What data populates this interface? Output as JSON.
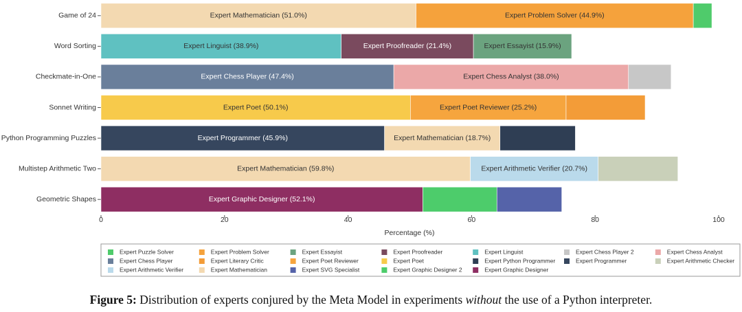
{
  "chart_data": {
    "type": "bar",
    "orientation": "horizontal",
    "stacked": true,
    "x_label": "Percentage (%)",
    "xlim": [
      0,
      100
    ],
    "xticks": [
      0,
      20,
      40,
      60,
      80,
      100
    ],
    "legend": [
      {
        "name": "Expert Puzzle Solver",
        "color": "#4fcb6b"
      },
      {
        "name": "Expert Problem Solver",
        "color": "#f5a23c"
      },
      {
        "name": "Expert Essayist",
        "color": "#6ba37f"
      },
      {
        "name": "Expert Proofreader",
        "color": "#7a4a5e"
      },
      {
        "name": "Expert Linguist",
        "color": "#5fc1c1"
      },
      {
        "name": "Expert Chess Player 2",
        "color": "#c7c7c7"
      },
      {
        "name": "Expert Chess Analyst",
        "color": "#eba8a8"
      },
      {
        "name": "Expert Chess Player",
        "color": "#6a7f9b"
      },
      {
        "name": "Expert Literary Critic",
        "color": "#f39c38"
      },
      {
        "name": "Expert Poet Reviewer",
        "color": "#f6a53e"
      },
      {
        "name": "Expert Poet",
        "color": "#f7ca4b"
      },
      {
        "name": "Expert Python Programmer",
        "color": "#2f3e54"
      },
      {
        "name": "Expert Programmer",
        "color": "#36465e"
      },
      {
        "name": "Expert Arithmetic Checker",
        "color": "#c9d0b9"
      },
      {
        "name": "Expert Arithmetic Verifier",
        "color": "#badaeb"
      },
      {
        "name": "Expert Mathematician",
        "color": "#f3d9b1"
      },
      {
        "name": "Expert SVG Specialist",
        "color": "#5563a9"
      },
      {
        "name": "Expert Graphic Designer 2",
        "color": "#4dcc6b"
      },
      {
        "name": "Expert Graphic Designer",
        "color": "#8e2e62"
      }
    ],
    "bars": [
      {
        "category": "Game of 24",
        "segments": [
          {
            "name": "Expert Mathematician",
            "value": 51.0,
            "value_label": "Expert Mathematician (51.0%)"
          },
          {
            "name": "Expert Problem Solver",
            "value": 44.9,
            "value_label": "Expert Problem Solver (44.9%)"
          },
          {
            "name": "Expert Puzzle Solver",
            "value": 3.0
          }
        ]
      },
      {
        "category": "Word Sorting",
        "segments": [
          {
            "name": "Expert Linguist",
            "value": 38.9,
            "value_label": "Expert Linguist (38.9%)"
          },
          {
            "name": "Expert Proofreader",
            "value": 21.4,
            "value_label": "Expert Proofreader (21.4%)"
          },
          {
            "name": "Expert Essayist",
            "value": 15.9,
            "value_label": "Expert Essayist (15.9%)"
          }
        ]
      },
      {
        "category": "Checkmate-in-One",
        "segments": [
          {
            "name": "Expert Chess Player",
            "value": 47.4,
            "value_label": "Expert Chess Player (47.4%)"
          },
          {
            "name": "Expert Chess Analyst",
            "value": 38.0,
            "value_label": "Expert Chess Analyst (38.0%)"
          },
          {
            "name": "Expert Chess Player 2",
            "value": 6.9
          }
        ]
      },
      {
        "category": "Sonnet Writing",
        "segments": [
          {
            "name": "Expert Poet",
            "value": 50.1,
            "value_label": "Expert Poet (50.1%)"
          },
          {
            "name": "Expert Poet Reviewer",
            "value": 25.2,
            "value_label": "Expert Poet Reviewer (25.2%)"
          },
          {
            "name": "Expert Literary Critic",
            "value": 12.8
          }
        ]
      },
      {
        "category": "Python Programming Puzzles",
        "segments": [
          {
            "name": "Expert Programmer",
            "value": 45.9,
            "value_label": "Expert Programmer (45.9%)"
          },
          {
            "name": "Expert Mathematician",
            "value": 18.7,
            "value_label": "Expert Mathematician (18.7%)"
          },
          {
            "name": "Expert Python Programmer",
            "value": 12.2
          }
        ]
      },
      {
        "category": "Multistep Arithmetic Two",
        "segments": [
          {
            "name": "Expert Mathematician",
            "value": 59.8,
            "value_label": "Expert Mathematician (59.8%)"
          },
          {
            "name": "Expert Arithmetic Verifier",
            "value": 20.7,
            "value_label": "Expert Arithmetic Verifier (20.7%)"
          },
          {
            "name": "Expert Arithmetic Checker",
            "value": 12.9
          }
        ]
      },
      {
        "category": "Geometric Shapes",
        "segments": [
          {
            "name": "Expert Graphic Designer",
            "value": 52.1,
            "value_label": "Expert Graphic Designer (52.1%)"
          },
          {
            "name": "Expert Graphic Designer 2",
            "value": 12.0
          },
          {
            "name": "Expert SVG Specialist",
            "value": 10.5
          }
        ]
      }
    ]
  },
  "caption": {
    "label": "Figure 5:",
    "text_1": " Distribution of experts conjured by the Meta Model in experiments ",
    "emphasis": "without",
    "text_2": " the use of a Python interpreter."
  }
}
